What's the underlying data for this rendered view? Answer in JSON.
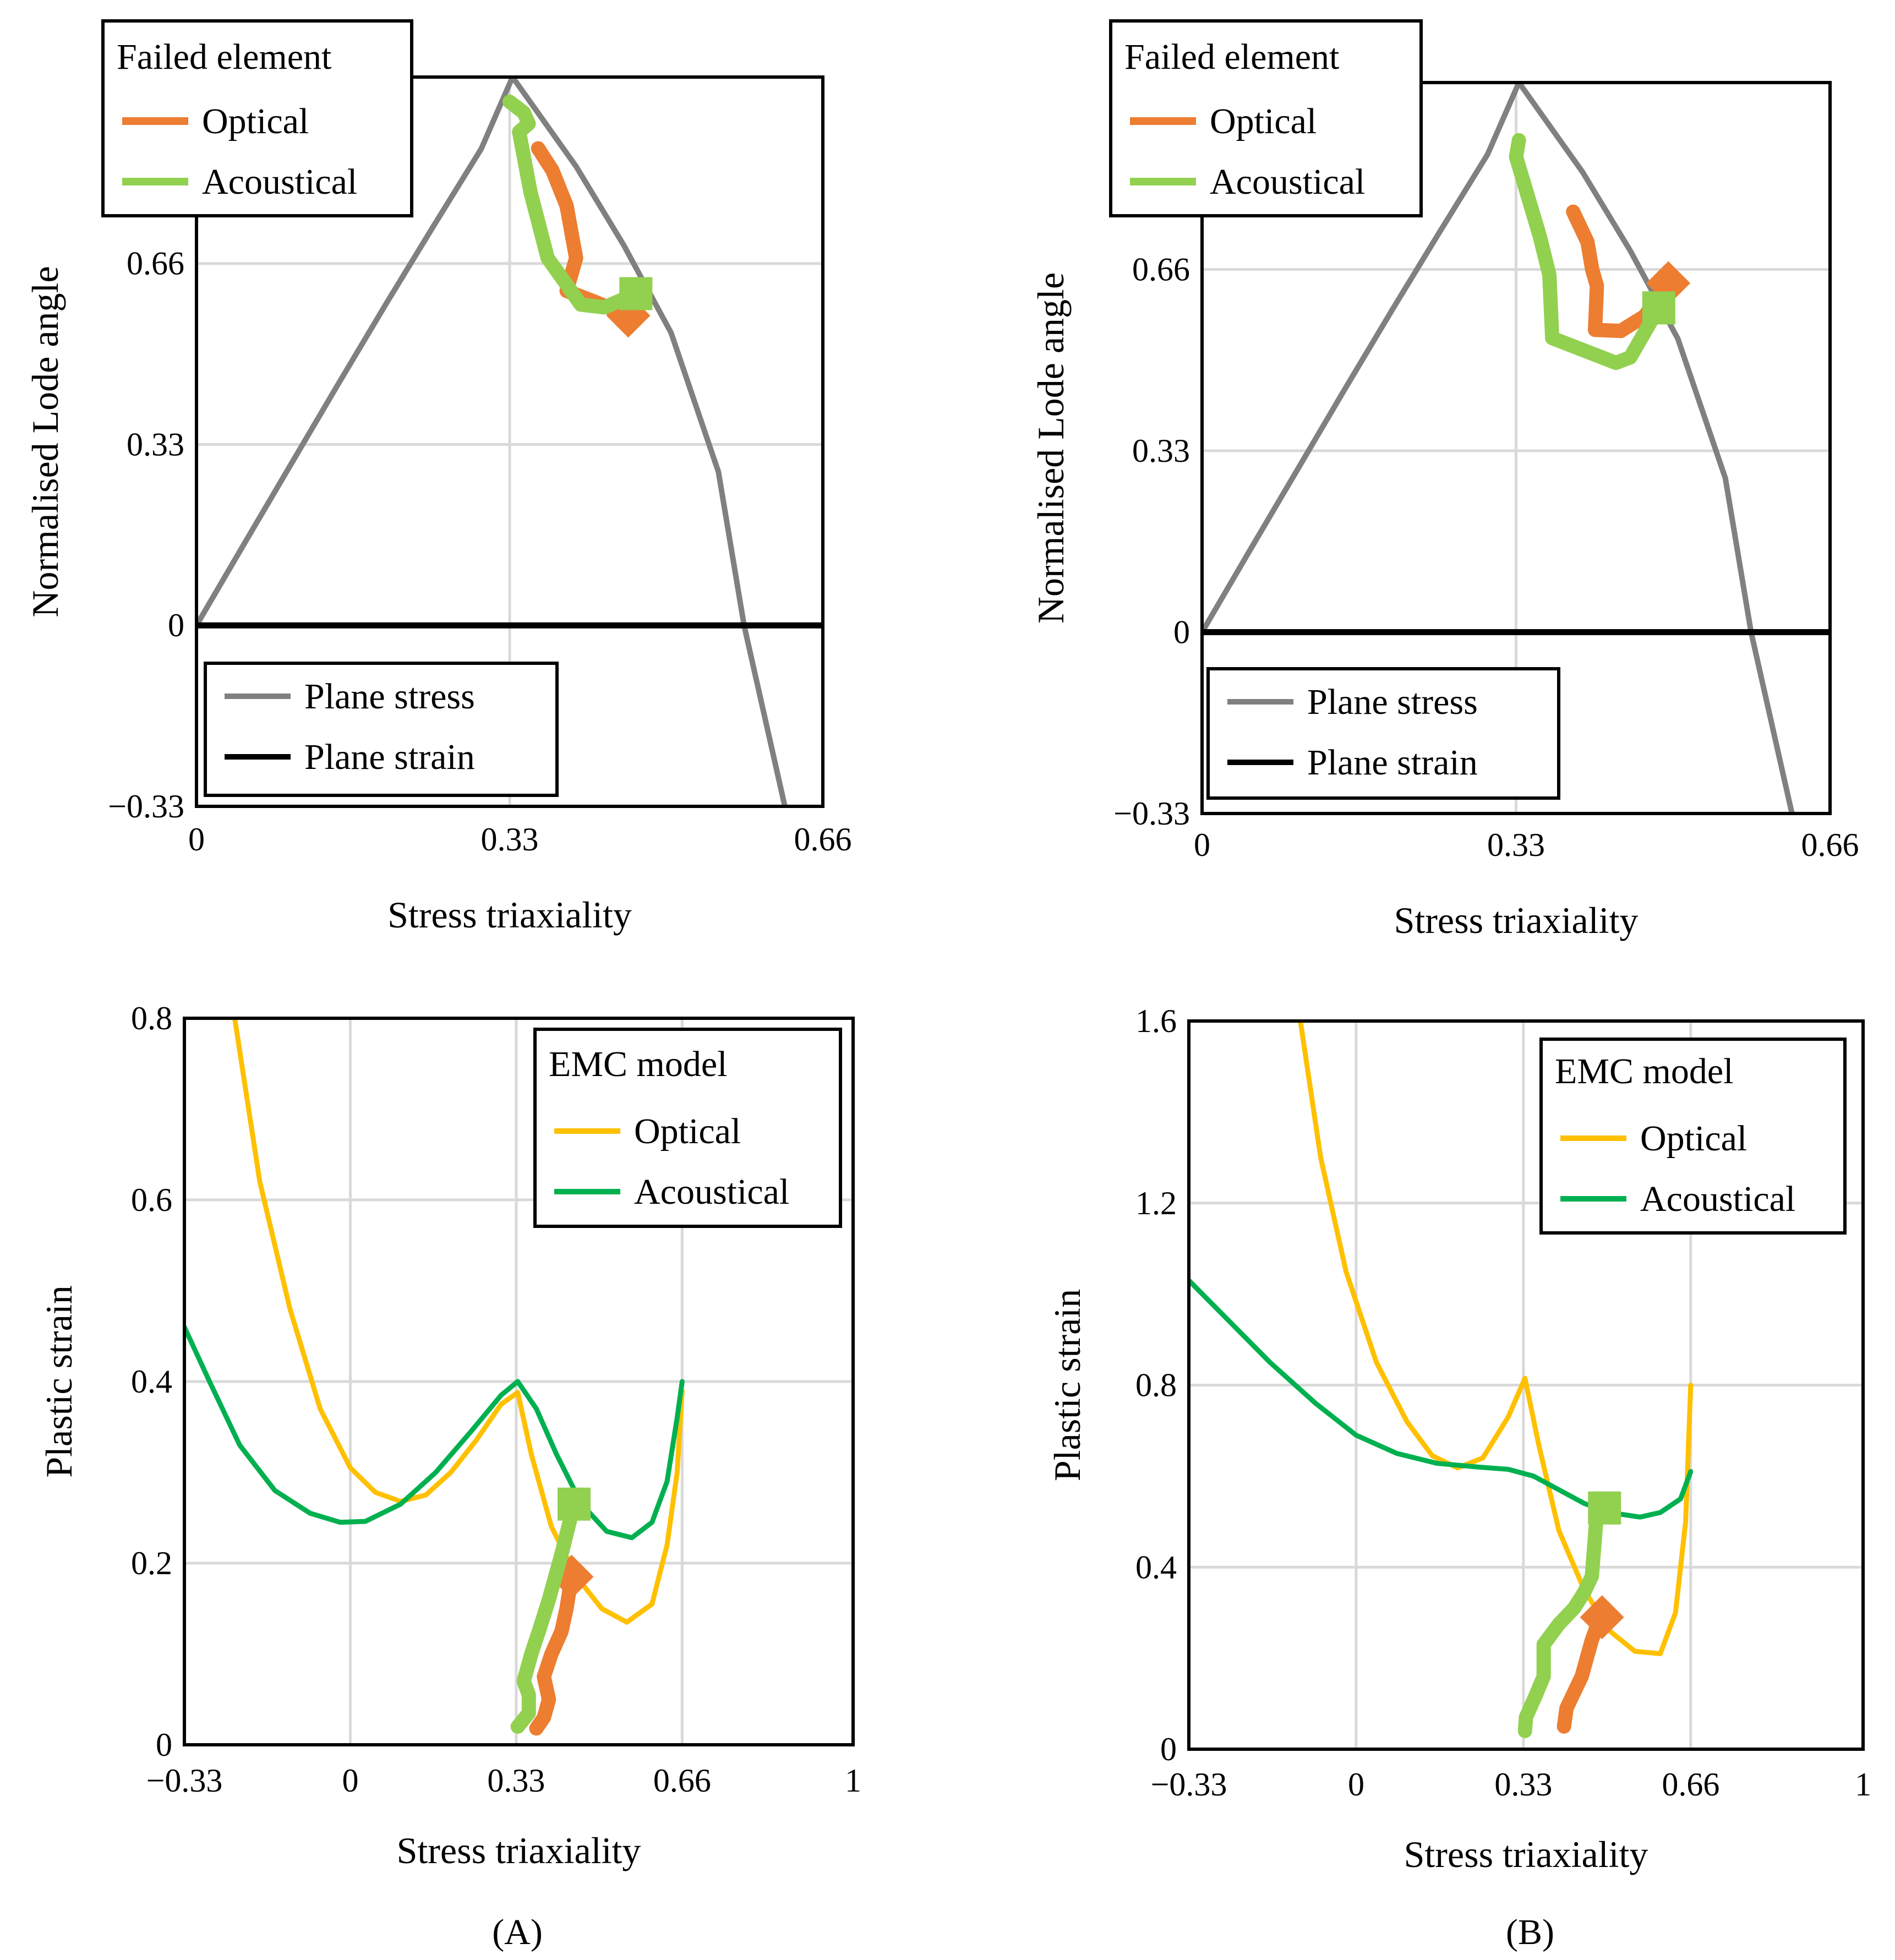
{
  "captions": [
    "(A)",
    "(B)"
  ],
  "chart_data": [
    {
      "type": "line",
      "panel": "A-top",
      "xlabel": "Stress triaxiality",
      "ylabel": "Normalised Lode angle",
      "xlim": [
        0,
        0.66
      ],
      "ylim": [
        -0.33,
        1.0
      ],
      "xticks": [
        "0",
        "0.33",
        "0.66"
      ],
      "yticks": [
        "−0.33",
        "0",
        "0.33",
        "0.66"
      ],
      "grid": true,
      "legends": [
        {
          "title": "Failed element",
          "placement": "top-left",
          "entries": [
            {
              "label": "Optical",
              "color": "#ed7d31"
            },
            {
              "label": "Acoustical",
              "color": "#92d050"
            }
          ]
        },
        {
          "title": "",
          "placement": "bottom-left",
          "entries": [
            {
              "label": "Plane stress",
              "color": "#808080"
            },
            {
              "label": "Plane strain",
              "color": "#000000"
            }
          ]
        }
      ],
      "series": [
        {
          "name": "Plane stress",
          "color": "#808080",
          "points": [
            [
              0,
              0
            ],
            [
              0.05,
              0.148
            ],
            [
              0.1,
              0.295
            ],
            [
              0.15,
              0.442
            ],
            [
              0.2,
              0.587
            ],
            [
              0.25,
              0.729
            ],
            [
              0.3,
              0.869
            ],
            [
              0.333,
              1.0
            ],
            [
              0.4,
              0.837
            ],
            [
              0.45,
              0.694
            ],
            [
              0.5,
              0.534
            ],
            [
              0.55,
              0.28
            ],
            [
              0.577,
              0.0
            ],
            [
              0.62,
              -0.33
            ]
          ]
        },
        {
          "name": "Plane strain",
          "color": "#000000",
          "points": [
            [
              0,
              0
            ],
            [
              0.66,
              0
            ]
          ]
        },
        {
          "name": "Optical",
          "color": "#ed7d31",
          "marker": "diamond",
          "points": [
            [
              0.36,
              0.87
            ],
            [
              0.375,
              0.83
            ],
            [
              0.39,
              0.765
            ],
            [
              0.4,
              0.67
            ],
            [
              0.39,
              0.61
            ],
            [
              0.42,
              0.59
            ],
            [
              0.455,
              0.565
            ]
          ]
        },
        {
          "name": "Acoustical",
          "color": "#92d050",
          "marker": "square",
          "points": [
            [
              0.33,
              0.955
            ],
            [
              0.345,
              0.935
            ],
            [
              0.35,
              0.915
            ],
            [
              0.34,
              0.9
            ],
            [
              0.352,
              0.79
            ],
            [
              0.37,
              0.67
            ],
            [
              0.405,
              0.585
            ],
            [
              0.43,
              0.58
            ],
            [
              0.463,
              0.605
            ]
          ]
        }
      ]
    },
    {
      "type": "line",
      "panel": "B-top",
      "xlabel": "Stress triaxiality",
      "ylabel": "Normalised Lode angle",
      "xlim": [
        0,
        0.66
      ],
      "ylim": [
        -0.33,
        1.0
      ],
      "xticks": [
        "0",
        "0.33",
        "0.66"
      ],
      "yticks": [
        "−0.33",
        "0",
        "0.33",
        "0.66"
      ],
      "grid": true,
      "legends": [
        {
          "title": "Failed element",
          "placement": "top-left",
          "entries": [
            {
              "label": "Optical",
              "color": "#ed7d31"
            },
            {
              "label": "Acoustical",
              "color": "#92d050"
            }
          ]
        },
        {
          "title": "",
          "placement": "bottom-left",
          "entries": [
            {
              "label": "Plane stress",
              "color": "#808080"
            },
            {
              "label": "Plane strain",
              "color": "#000000"
            }
          ]
        }
      ],
      "series": [
        {
          "name": "Plane stress",
          "color": "#808080",
          "points": [
            [
              0,
              0
            ],
            [
              0.05,
              0.148
            ],
            [
              0.1,
              0.295
            ],
            [
              0.15,
              0.442
            ],
            [
              0.2,
              0.587
            ],
            [
              0.25,
              0.729
            ],
            [
              0.3,
              0.869
            ],
            [
              0.333,
              1.0
            ],
            [
              0.4,
              0.837
            ],
            [
              0.45,
              0.694
            ],
            [
              0.5,
              0.534
            ],
            [
              0.55,
              0.28
            ],
            [
              0.577,
              0.0
            ],
            [
              0.62,
              -0.33
            ]
          ]
        },
        {
          "name": "Plane strain",
          "color": "#000000",
          "points": [
            [
              0,
              0
            ],
            [
              0.66,
              0
            ]
          ]
        },
        {
          "name": "Optical",
          "color": "#ed7d31",
          "marker": "diamond",
          "points": [
            [
              0.39,
              0.765
            ],
            [
              0.405,
              0.71
            ],
            [
              0.41,
              0.66
            ],
            [
              0.415,
              0.63
            ],
            [
              0.413,
              0.55
            ],
            [
              0.44,
              0.548
            ],
            [
              0.465,
              0.575
            ],
            [
              0.49,
              0.635
            ]
          ]
        },
        {
          "name": "Acoustical",
          "color": "#92d050",
          "marker": "square",
          "points": [
            [
              0.333,
              0.895
            ],
            [
              0.33,
              0.865
            ],
            [
              0.355,
              0.72
            ],
            [
              0.365,
              0.65
            ],
            [
              0.368,
              0.535
            ],
            [
              0.435,
              0.49
            ],
            [
              0.45,
              0.5
            ],
            [
              0.48,
              0.59
            ]
          ]
        }
      ]
    },
    {
      "type": "line",
      "panel": "A-bottom",
      "xlabel": "Stress triaxiality",
      "ylabel": "Plastic strain",
      "xlim": [
        -0.33,
        1.0
      ],
      "ylim": [
        0,
        0.8
      ],
      "xticks": [
        "−0.33",
        "0",
        "0.33",
        "0.66",
        "1"
      ],
      "yticks": [
        "0",
        "0.2",
        "0.4",
        "0.6",
        "0.8"
      ],
      "grid": true,
      "legends": [
        {
          "title": "EMC model",
          "placement": "top-right",
          "entries": [
            {
              "label": "Optical",
              "color": "#ffc000"
            },
            {
              "label": "Acoustical",
              "color": "#00b050"
            }
          ]
        }
      ],
      "series": [
        {
          "name": "Optical",
          "color": "#ffc000",
          "points": [
            [
              -0.23,
              0.8
            ],
            [
              -0.18,
              0.62
            ],
            [
              -0.12,
              0.48
            ],
            [
              -0.06,
              0.37
            ],
            [
              0.0,
              0.305
            ],
            [
              0.05,
              0.278
            ],
            [
              0.1,
              0.268
            ],
            [
              0.15,
              0.275
            ],
            [
              0.2,
              0.3
            ],
            [
              0.25,
              0.335
            ],
            [
              0.3,
              0.375
            ],
            [
              0.333,
              0.388
            ],
            [
              0.36,
              0.32
            ],
            [
              0.4,
              0.24
            ],
            [
              0.45,
              0.185
            ],
            [
              0.5,
              0.15
            ],
            [
              0.55,
              0.135
            ],
            [
              0.6,
              0.155
            ],
            [
              0.63,
              0.22
            ],
            [
              0.65,
              0.3
            ],
            [
              0.66,
              0.39
            ]
          ]
        },
        {
          "name": "Acoustical",
          "color": "#00b050",
          "points": [
            [
              -0.33,
              0.46
            ],
            [
              -0.28,
              0.4
            ],
            [
              -0.22,
              0.33
            ],
            [
              -0.15,
              0.28
            ],
            [
              -0.08,
              0.255
            ],
            [
              -0.02,
              0.245
            ],
            [
              0.03,
              0.246
            ],
            [
              0.1,
              0.265
            ],
            [
              0.17,
              0.3
            ],
            [
              0.24,
              0.345
            ],
            [
              0.3,
              0.385
            ],
            [
              0.333,
              0.4
            ],
            [
              0.37,
              0.37
            ],
            [
              0.41,
              0.32
            ],
            [
              0.46,
              0.265
            ],
            [
              0.51,
              0.235
            ],
            [
              0.56,
              0.228
            ],
            [
              0.6,
              0.245
            ],
            [
              0.63,
              0.29
            ],
            [
              0.65,
              0.36
            ],
            [
              0.66,
              0.4
            ]
          ]
        },
        {
          "name": "Optical",
          "color": "#ed7d31",
          "marker": "diamond",
          "points": [
            [
              0.37,
              0.018
            ],
            [
              0.385,
              0.03
            ],
            [
              0.395,
              0.05
            ],
            [
              0.385,
              0.075
            ],
            [
              0.4,
              0.1
            ],
            [
              0.42,
              0.125
            ],
            [
              0.43,
              0.15
            ],
            [
              0.44,
              0.185
            ]
          ]
        },
        {
          "name": "Acoustical",
          "color": "#92d050",
          "marker": "square",
          "points": [
            [
              0.333,
              0.02
            ],
            [
              0.355,
              0.035
            ],
            [
              0.355,
              0.055
            ],
            [
              0.345,
              0.07
            ],
            [
              0.36,
              0.1
            ],
            [
              0.375,
              0.125
            ],
            [
              0.395,
              0.16
            ],
            [
              0.42,
              0.21
            ],
            [
              0.445,
              0.265
            ]
          ]
        }
      ]
    },
    {
      "type": "line",
      "panel": "B-bottom",
      "xlabel": "Stress triaxiality",
      "ylabel": "Plastic strain",
      "xlim": [
        -0.33,
        1.0
      ],
      "ylim": [
        0,
        1.6
      ],
      "xticks": [
        "−0.33",
        "0",
        "0.33",
        "0.66",
        "1"
      ],
      "yticks": [
        "0",
        "0.4",
        "0.8",
        "1.2",
        "1.6"
      ],
      "grid": true,
      "legends": [
        {
          "title": "EMC model",
          "placement": "top-right",
          "entries": [
            {
              "label": "Optical",
              "color": "#ffc000"
            },
            {
              "label": "Acoustical",
              "color": "#00b050"
            }
          ]
        }
      ],
      "series": [
        {
          "name": "Optical",
          "color": "#ffc000",
          "points": [
            [
              -0.11,
              1.6
            ],
            [
              -0.07,
              1.3
            ],
            [
              -0.02,
              1.05
            ],
            [
              0.04,
              0.85
            ],
            [
              0.1,
              0.72
            ],
            [
              0.15,
              0.645
            ],
            [
              0.2,
              0.618
            ],
            [
              0.25,
              0.64
            ],
            [
              0.3,
              0.73
            ],
            [
              0.333,
              0.815
            ],
            [
              0.36,
              0.67
            ],
            [
              0.4,
              0.48
            ],
            [
              0.45,
              0.35
            ],
            [
              0.5,
              0.26
            ],
            [
              0.55,
              0.215
            ],
            [
              0.6,
              0.21
            ],
            [
              0.63,
              0.3
            ],
            [
              0.65,
              0.5
            ],
            [
              0.66,
              0.8
            ]
          ]
        },
        {
          "name": "Acoustical",
          "color": "#00b050",
          "points": [
            [
              -0.33,
              1.03
            ],
            [
              -0.25,
              0.94
            ],
            [
              -0.17,
              0.85
            ],
            [
              -0.08,
              0.76
            ],
            [
              0.0,
              0.69
            ],
            [
              0.08,
              0.65
            ],
            [
              0.16,
              0.628
            ],
            [
              0.24,
              0.62
            ],
            [
              0.3,
              0.615
            ],
            [
              0.35,
              0.6
            ],
            [
              0.4,
              0.57
            ],
            [
              0.45,
              0.54
            ],
            [
              0.5,
              0.52
            ],
            [
              0.56,
              0.51
            ],
            [
              0.6,
              0.52
            ],
            [
              0.64,
              0.55
            ],
            [
              0.66,
              0.61
            ]
          ]
        },
        {
          "name": "Optical",
          "color": "#ed7d31",
          "marker": "diamond",
          "points": [
            [
              0.41,
              0.05
            ],
            [
              0.415,
              0.09
            ],
            [
              0.43,
              0.125
            ],
            [
              0.445,
              0.16
            ],
            [
              0.455,
              0.2
            ],
            [
              0.465,
              0.24
            ],
            [
              0.475,
              0.27
            ],
            [
              0.485,
              0.29
            ]
          ]
        },
        {
          "name": "Acoustical",
          "color": "#92d050",
          "marker": "square",
          "points": [
            [
              0.333,
              0.04
            ],
            [
              0.335,
              0.07
            ],
            [
              0.355,
              0.12
            ],
            [
              0.37,
              0.16
            ],
            [
              0.37,
              0.23
            ],
            [
              0.4,
              0.275
            ],
            [
              0.43,
              0.31
            ],
            [
              0.45,
              0.345
            ],
            [
              0.465,
              0.38
            ],
            [
              0.47,
              0.45
            ],
            [
              0.475,
              0.52
            ],
            [
              0.49,
              0.53
            ]
          ]
        }
      ]
    }
  ]
}
